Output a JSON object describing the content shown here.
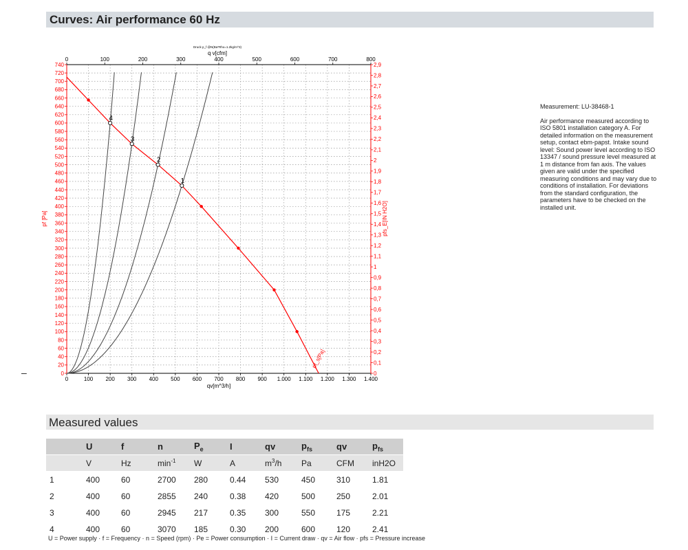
{
  "title": "Curves: Air performance 60 Hz",
  "measured_values_title": "Measured values",
  "notes": {
    "measurement": "Measurement: LU-38468-1",
    "description": "Air performance measured according to ISO 5801 installation category A. For detailed information on the measurement setup, contact ebm-papst. Intake sound level: Sound power level according to ISO 13347 / sound pressure level measured at 1 m distance from fan axis. The values given are valid under the specified measuring conditions and may vary due to conditions of installation. For deviations from the standard configuration, the parameters have to be checked on the installed unit."
  },
  "table": {
    "headers": [
      {
        "main": "",
        "sub": ""
      },
      {
        "main": "U",
        "sub": ""
      },
      {
        "main": "f",
        "sub": ""
      },
      {
        "main": "n",
        "sub": ""
      },
      {
        "main": "P",
        "sub": "e"
      },
      {
        "main": "I",
        "sub": ""
      },
      {
        "main": "qv",
        "sub": ""
      },
      {
        "main": "p",
        "sub": "fs"
      },
      {
        "main": "qv",
        "sub": ""
      },
      {
        "main": "p",
        "sub": "fs"
      }
    ],
    "units": [
      "",
      "V",
      "Hz",
      "min",
      "W",
      "A",
      "m3/h",
      "Pa",
      "CFM",
      "inH2O"
    ],
    "rows": [
      [
        "1",
        "400",
        "60",
        "2700",
        "280",
        "0.44",
        "530",
        "450",
        "310",
        "1.81"
      ],
      [
        "2",
        "400",
        "60",
        "2855",
        "240",
        "0.38",
        "420",
        "500",
        "250",
        "2.01"
      ],
      [
        "3",
        "400",
        "60",
        "2945",
        "217",
        "0.35",
        "300",
        "550",
        "175",
        "2.21"
      ],
      [
        "4",
        "400",
        "60",
        "3070",
        "185",
        "0.30",
        "200",
        "600",
        "120",
        "2.41"
      ]
    ]
  },
  "footnote": "U = Power supply · f = Frequency · n = Speed (rpm) · Pe = Power consumption · I = Current draw · qv = Air flow · pfs = Pressure increase",
  "chart_data": {
    "type": "line",
    "top_caption": "Druck p_f @N(Ba*Rho=1.2kg/m^3)",
    "xlabel": "qv[m^3/h]",
    "x2label": "q v[cfm]",
    "ylabel": "pf [Pa]",
    "y2label": "pfs_E[IN H2O]",
    "curve_label": "pf_s[Pa]",
    "xlim": [
      0,
      1400
    ],
    "ylim": [
      0,
      740
    ],
    "x2lim": [
      0,
      800
    ],
    "y2lim": [
      0,
      2.9
    ],
    "x_ticks": [
      "0",
      "100",
      "200",
      "300",
      "400",
      "500",
      "600",
      "700",
      "800",
      "900",
      "1.000",
      "1.100",
      "1.200",
      "1.300",
      "1.400"
    ],
    "x2_ticks": [
      "0",
      "100",
      "200",
      "300",
      "400",
      "500",
      "600",
      "700",
      "800"
    ],
    "y_ticks": [
      "0",
      "20",
      "40",
      "60",
      "80",
      "100",
      "120",
      "140",
      "160",
      "180",
      "200",
      "220",
      "240",
      "260",
      "280",
      "300",
      "320",
      "340",
      "360",
      "380",
      "400",
      "420",
      "440",
      "460",
      "480",
      "500",
      "520",
      "540",
      "560",
      "580",
      "600",
      "620",
      "640",
      "660",
      "680",
      "700",
      "720",
      "740"
    ],
    "y2_ticks": [
      "0",
      "0,1",
      "0,2",
      "0,3",
      "0,4",
      "0,5",
      "0,6",
      "0,7",
      "0,8",
      "0,9",
      "1",
      "1,1",
      "1,2",
      "1,3",
      "1,4",
      "1,5",
      "1,6",
      "1,7",
      "1,8",
      "1,9",
      "2",
      "2,1",
      "2,2",
      "2,3",
      "2,4",
      "2,5",
      "2,6",
      "2,7",
      "2,8",
      "2,9"
    ],
    "grid": true,
    "fan_curve": {
      "color": "#ff0000",
      "x": [
        0,
        100,
        200,
        300,
        420,
        530,
        620,
        790,
        955,
        1060,
        1160
      ],
      "y": [
        710,
        655,
        600,
        550,
        500,
        450,
        400,
        300,
        200,
        100,
        0
      ]
    },
    "markers_x": [
      100,
      620,
      790,
      955,
      1060
    ],
    "system_curves": [
      {
        "label": "1",
        "k": 0.001602
      },
      {
        "label": "2",
        "k": 0.002834
      },
      {
        "label": "3",
        "k": 0.006111
      },
      {
        "label": "4",
        "k": 0.015
      }
    ],
    "operating_points": [
      {
        "label": "1",
        "x": 530,
        "y": 450
      },
      {
        "label": "2",
        "x": 420,
        "y": 500
      },
      {
        "label": "3",
        "x": 300,
        "y": 550
      },
      {
        "label": "4",
        "x": 200,
        "y": 600
      }
    ]
  }
}
